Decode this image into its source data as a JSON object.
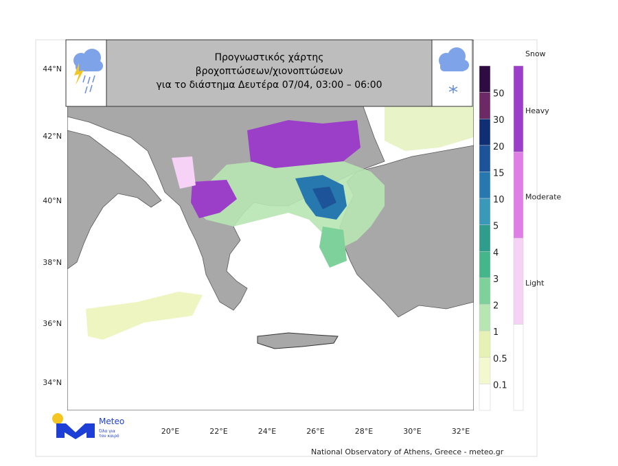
{
  "header": {
    "title_lines": [
      "Προγνωστικός χάρτης",
      "βροχοπτώσεων/χιονοπτώσεων",
      "για το διάστημα Δευτέρα 07/04, 03:00 – 06:00"
    ]
  },
  "map": {
    "lat_labels": [
      "44°N",
      "42°N",
      "40°N",
      "38°N",
      "36°N",
      "34°N"
    ],
    "lon_labels": [
      "20°E",
      "22°E",
      "24°E",
      "26°E",
      "28°E",
      "30°E",
      "32°E"
    ]
  },
  "rain_legend": {
    "labels": [
      50,
      30,
      20,
      15,
      10,
      5,
      4,
      3,
      2,
      1,
      0.5,
      0.1
    ],
    "colors": [
      "#2e0b40",
      "#6b2a63",
      "#0f2e73",
      "#1d5499",
      "#2878b0",
      "#3a98b8",
      "#2f9c8c",
      "#45b58b",
      "#7fd19b",
      "#b7e6b2",
      "#e6f2b5",
      "#f3f8cf",
      "#ffffff"
    ]
  },
  "snow_legend": {
    "title": "Snow",
    "labels": [
      "Heavy",
      "Moderate",
      "Light"
    ],
    "colors": [
      "#9b3fc9",
      "#e07ee8",
      "#f6d2f6",
      "#ffffff"
    ]
  },
  "logo": {
    "name": "Meteo",
    "tagline": [
      "Όλα για",
      "τον καιρό"
    ]
  },
  "footer": {
    "credit": "National Observatory of Athens, Greece - meteo.gr"
  }
}
